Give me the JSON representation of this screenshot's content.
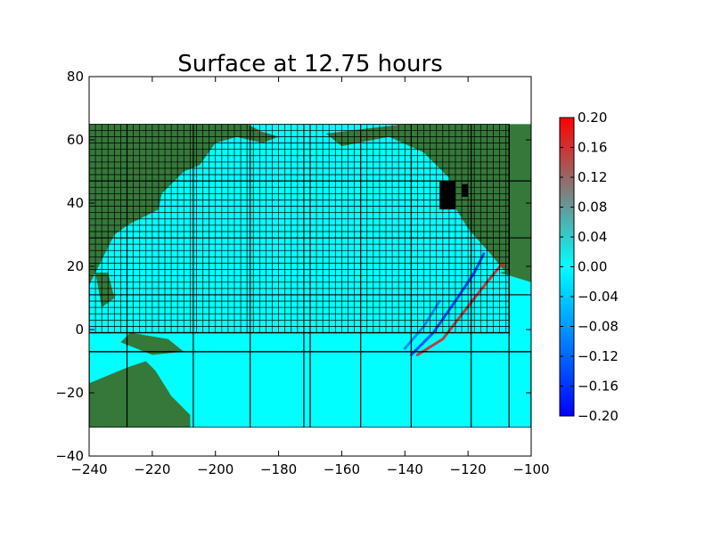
{
  "chart_data": {
    "type": "heatmap",
    "title": "Surface at 12.75 hours",
    "xlabel": "",
    "ylabel": "",
    "xlim": [
      -240,
      -100
    ],
    "ylim": [
      -40,
      80
    ],
    "xticks": [
      -240,
      -220,
      -200,
      -180,
      -160,
      -140,
      -120,
      -100
    ],
    "yticks": [
      -40,
      -20,
      0,
      20,
      40,
      60,
      80
    ],
    "data_extent": {
      "x": [
        -240,
        -100
      ],
      "y": [
        -31,
        65
      ]
    },
    "colorbar": {
      "min": -0.2,
      "max": 0.2,
      "ticks": [
        "0.20",
        "0.16",
        "0.12",
        "0.08",
        "0.04",
        "0.00",
        "−0.04",
        "−0.08",
        "−0.12",
        "−0.16",
        "−0.20"
      ],
      "colors": [
        "#0000ff",
        "#00ffff",
        "#ff0000"
      ]
    },
    "colors": {
      "ocean": "#00ffff",
      "land": "#35783a",
      "land_light": "#6e9b1c",
      "grid": "#000000"
    },
    "wave_fronts": [
      {
        "name": "positive",
        "value": 0.18,
        "points": [
          [
            -136,
            -8
          ],
          [
            -128,
            -3
          ],
          [
            -121,
            6
          ],
          [
            -114,
            15
          ],
          [
            -109,
            21
          ]
        ]
      },
      {
        "name": "negative",
        "value": -0.16,
        "points": [
          [
            -138,
            -8
          ],
          [
            -131,
            -1
          ],
          [
            -124,
            9
          ],
          [
            -118,
            18
          ],
          [
            -115,
            24
          ]
        ]
      },
      {
        "name": "negative-inner",
        "value": -0.1,
        "points": [
          [
            -140,
            -6
          ],
          [
            -134,
            1
          ],
          [
            -129,
            9
          ]
        ]
      }
    ],
    "refinement_patches": [
      {
        "x": [
          -240,
          -107
        ],
        "y": [
          -1,
          65
        ]
      },
      {
        "x": [
          -240,
          -100
        ],
        "y": [
          -31,
          -7
        ]
      }
    ],
    "fine_grid_step": 2,
    "coarse_x_lines": [
      -228,
      -207,
      -189,
      -172,
      -170,
      -154,
      -138,
      -119,
      -107
    ],
    "coarse_y_lines": [
      47,
      29,
      11,
      -7
    ],
    "land_regions": [
      {
        "name": "north-america",
        "points": [
          [
            -140,
            65
          ],
          [
            -100,
            65
          ],
          [
            -100,
            20
          ],
          [
            -108,
            18
          ],
          [
            -113,
            24
          ],
          [
            -120,
            32
          ],
          [
            -125,
            40
          ],
          [
            -126,
            48
          ],
          [
            -134,
            56
          ],
          [
            -145,
            61
          ],
          [
            -160,
            58
          ],
          [
            -165,
            62
          ]
        ]
      },
      {
        "name": "asia",
        "points": [
          [
            -240,
            65
          ],
          [
            -190,
            65
          ],
          [
            -186,
            63
          ],
          [
            -200,
            59
          ],
          [
            -205,
            52
          ],
          [
            -210,
            50
          ],
          [
            -215,
            45
          ],
          [
            -220,
            40
          ],
          [
            -225,
            35
          ],
          [
            -232,
            30
          ],
          [
            -238,
            18
          ],
          [
            -240,
            14
          ]
        ]
      },
      {
        "name": "alaska-peninsula",
        "points": [
          [
            -198,
            62
          ],
          [
            -190,
            64
          ],
          [
            -180,
            61
          ],
          [
            -185,
            59
          ]
        ]
      },
      {
        "name": "japan",
        "points": [
          [
            -222,
            45
          ],
          [
            -217,
            43
          ],
          [
            -218,
            38
          ],
          [
            -224,
            35
          ],
          [
            -228,
            33
          ],
          [
            -226,
            38
          ]
        ]
      },
      {
        "name": "philippines",
        "points": [
          [
            -238,
            18
          ],
          [
            -234,
            18
          ],
          [
            -232,
            10
          ],
          [
            -236,
            7
          ]
        ]
      },
      {
        "name": "new-guinea",
        "points": [
          [
            -227,
            -1
          ],
          [
            -215,
            -3
          ],
          [
            -210,
            -7
          ],
          [
            -220,
            -8
          ],
          [
            -230,
            -4
          ]
        ]
      },
      {
        "name": "australia",
        "points": [
          [
            -240,
            -17
          ],
          [
            -228,
            -12
          ],
          [
            -222,
            -10
          ],
          [
            -219,
            -13
          ],
          [
            -214,
            -21
          ],
          [
            -208,
            -27
          ],
          [
            -208,
            -31
          ],
          [
            -240,
            -31
          ]
        ]
      },
      {
        "name": "central-america",
        "points": [
          [
            -110,
            18
          ],
          [
            -100,
            15
          ],
          [
            -100,
            20
          ]
        ]
      }
    ],
    "black_patches": [
      {
        "x": [
          -129,
          -124
        ],
        "y": [
          38,
          47
        ]
      },
      {
        "x": [
          -122,
          -120
        ],
        "y": [
          42,
          46
        ]
      }
    ]
  }
}
